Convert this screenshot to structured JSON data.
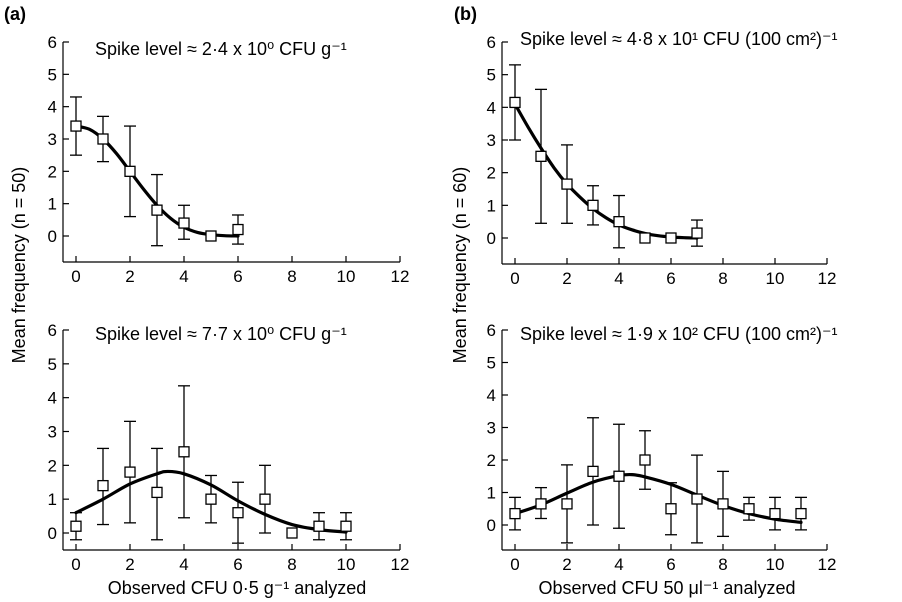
{
  "panel_letters": [
    "(a)",
    "(b)"
  ],
  "ylabels": {
    "a": "Mean frequency (n = 50)",
    "b": "Mean frequency (n = 60)"
  },
  "xlabels": {
    "a": "Observed CFU 0·5 g⁻¹ analyzed",
    "b": "Observed CFU 50 μl⁻¹ analyzed"
  },
  "chart_data": [
    {
      "type": "scatter",
      "id": "a-top",
      "annotation": "Spike level ≈ 2·4 x 10⁰ CFU g⁻¹",
      "xlim": [
        0,
        12
      ],
      "ylim": [
        0,
        6
      ],
      "xticks": [
        0,
        2,
        4,
        6,
        8,
        10,
        12
      ],
      "yticks": [
        0,
        1,
        2,
        3,
        4,
        5,
        6
      ],
      "points": [
        {
          "x": 0,
          "y": 3.4,
          "lo": 2.5,
          "hi": 4.3
        },
        {
          "x": 1,
          "y": 3.0,
          "lo": 2.3,
          "hi": 3.7
        },
        {
          "x": 2,
          "y": 2.0,
          "lo": 0.6,
          "hi": 3.4
        },
        {
          "x": 3,
          "y": 0.8,
          "lo": -0.3,
          "hi": 1.9
        },
        {
          "x": 4,
          "y": 0.4,
          "lo": -0.1,
          "hi": 0.95
        },
        {
          "x": 5,
          "y": 0.0
        },
        {
          "x": 6,
          "y": 0.2,
          "lo": -0.25,
          "hi": 0.65
        }
      ],
      "fit": {
        "xmin": 0,
        "xmax": 6,
        "curve": [
          [
            0,
            3.4
          ],
          [
            0.5,
            3.3
          ],
          [
            1,
            3.0
          ],
          [
            1.5,
            2.55
          ],
          [
            2,
            2.0
          ],
          [
            2.5,
            1.45
          ],
          [
            3,
            0.95
          ],
          [
            3.5,
            0.55
          ],
          [
            4,
            0.27
          ],
          [
            4.5,
            0.11
          ],
          [
            5,
            0.04
          ],
          [
            5.5,
            0.01
          ],
          [
            6,
            0.0
          ]
        ]
      }
    },
    {
      "type": "scatter",
      "id": "a-bottom",
      "annotation": "Spike level ≈ 7·7 x 10⁰ CFU g⁻¹",
      "xlim": [
        0,
        12
      ],
      "ylim": [
        0,
        6
      ],
      "xticks": [
        0,
        2,
        4,
        6,
        8,
        10,
        12
      ],
      "yticks": [
        0,
        1,
        2,
        3,
        4,
        5,
        6
      ],
      "points": [
        {
          "x": 0,
          "y": 0.2,
          "lo": -0.2,
          "hi": 0.6
        },
        {
          "x": 1,
          "y": 1.4,
          "lo": 0.25,
          "hi": 2.5
        },
        {
          "x": 2,
          "y": 1.8,
          "lo": 0.3,
          "hi": 3.3
        },
        {
          "x": 3,
          "y": 1.2,
          "lo": -0.2,
          "hi": 2.5
        },
        {
          "x": 4,
          "y": 2.4,
          "lo": 0.45,
          "hi": 4.35
        },
        {
          "x": 5,
          "y": 1.0,
          "lo": 0.3,
          "hi": 1.7
        },
        {
          "x": 6,
          "y": 0.6,
          "lo": -0.3,
          "hi": 1.5
        },
        {
          "x": 7,
          "y": 1.0,
          "lo": 0.0,
          "hi": 2.0
        },
        {
          "x": 8,
          "y": 0.0
        },
        {
          "x": 9,
          "y": 0.2,
          "lo": -0.2,
          "hi": 0.6
        },
        {
          "x": 10,
          "y": 0.2,
          "lo": -0.2,
          "hi": 0.6
        }
      ],
      "fit": {
        "xmin": 0,
        "xmax": 10,
        "curve": [
          [
            0,
            0.6
          ],
          [
            1,
            1.0
          ],
          [
            2,
            1.45
          ],
          [
            3,
            1.75
          ],
          [
            3.4,
            1.82
          ],
          [
            4,
            1.75
          ],
          [
            5,
            1.42
          ],
          [
            6,
            0.95
          ],
          [
            7,
            0.55
          ],
          [
            8,
            0.25
          ],
          [
            9,
            0.1
          ],
          [
            10,
            0.03
          ]
        ]
      }
    },
    {
      "type": "scatter",
      "id": "b-top",
      "annotation": "Spike level ≈ 4·8 x 10¹ CFU (100 cm²)⁻¹",
      "xlim": [
        0,
        12
      ],
      "ylim": [
        0,
        6
      ],
      "xticks": [
        0,
        2,
        4,
        6,
        8,
        10,
        12
      ],
      "yticks": [
        0,
        1,
        2,
        3,
        4,
        5,
        6
      ],
      "points": [
        {
          "x": 0,
          "y": 4.15,
          "lo": 3.0,
          "hi": 5.3
        },
        {
          "x": 1,
          "y": 2.5,
          "lo": 0.45,
          "hi": 4.55
        },
        {
          "x": 2,
          "y": 1.65,
          "lo": 0.45,
          "hi": 2.85
        },
        {
          "x": 3,
          "y": 1.0,
          "lo": 0.4,
          "hi": 1.6
        },
        {
          "x": 4,
          "y": 0.5,
          "lo": -0.3,
          "hi": 1.3
        },
        {
          "x": 5,
          "y": 0.0
        },
        {
          "x": 6,
          "y": 0.0
        },
        {
          "x": 7,
          "y": 0.15,
          "lo": -0.25,
          "hi": 0.55
        }
      ],
      "fit": {
        "xmin": 0,
        "xmax": 7,
        "curve": [
          [
            0,
            4.1
          ],
          [
            0.5,
            3.4
          ],
          [
            1,
            2.75
          ],
          [
            1.5,
            2.15
          ],
          [
            2,
            1.65
          ],
          [
            2.5,
            1.25
          ],
          [
            3,
            0.9
          ],
          [
            3.5,
            0.62
          ],
          [
            4,
            0.4
          ],
          [
            4.5,
            0.25
          ],
          [
            5,
            0.14
          ],
          [
            5.5,
            0.07
          ],
          [
            6,
            0.03
          ],
          [
            6.5,
            0.01
          ],
          [
            7,
            0.0
          ]
        ]
      }
    },
    {
      "type": "scatter",
      "id": "b-bottom",
      "annotation": "Spike level ≈ 1·9 x 10² CFU  (100 cm²)⁻¹",
      "xlim": [
        0,
        12
      ],
      "ylim": [
        0,
        6
      ],
      "xticks": [
        0,
        2,
        4,
        6,
        8,
        10,
        12
      ],
      "yticks": [
        0,
        1,
        2,
        3,
        4,
        5,
        6
      ],
      "points": [
        {
          "x": 0,
          "y": 0.35,
          "lo": -0.15,
          "hi": 0.85
        },
        {
          "x": 1,
          "y": 0.65,
          "lo": 0.2,
          "hi": 1.15
        },
        {
          "x": 2,
          "y": 0.65,
          "lo": -0.55,
          "hi": 1.85
        },
        {
          "x": 3,
          "y": 1.65,
          "lo": 0.0,
          "hi": 3.3
        },
        {
          "x": 4,
          "y": 1.5,
          "lo": -0.1,
          "hi": 3.1
        },
        {
          "x": 5,
          "y": 2.0,
          "lo": 1.1,
          "hi": 2.9
        },
        {
          "x": 6,
          "y": 0.5,
          "lo": -0.3,
          "hi": 1.3
        },
        {
          "x": 7,
          "y": 0.8,
          "lo": -0.55,
          "hi": 2.15
        },
        {
          "x": 8,
          "y": 0.65,
          "lo": -0.35,
          "hi": 1.65
        },
        {
          "x": 9,
          "y": 0.5,
          "lo": 0.15,
          "hi": 0.85
        },
        {
          "x": 10,
          "y": 0.35,
          "lo": -0.15,
          "hi": 0.85
        },
        {
          "x": 11,
          "y": 0.35,
          "lo": -0.15,
          "hi": 0.85
        }
      ],
      "fit": {
        "xmin": 0,
        "xmax": 11,
        "curve": [
          [
            0,
            0.35
          ],
          [
            1,
            0.62
          ],
          [
            2,
            0.98
          ],
          [
            3,
            1.32
          ],
          [
            4,
            1.52
          ],
          [
            4.5,
            1.55
          ],
          [
            5,
            1.48
          ],
          [
            6,
            1.25
          ],
          [
            7,
            0.92
          ],
          [
            8,
            0.6
          ],
          [
            9,
            0.35
          ],
          [
            10,
            0.18
          ],
          [
            11,
            0.08
          ]
        ]
      }
    }
  ]
}
